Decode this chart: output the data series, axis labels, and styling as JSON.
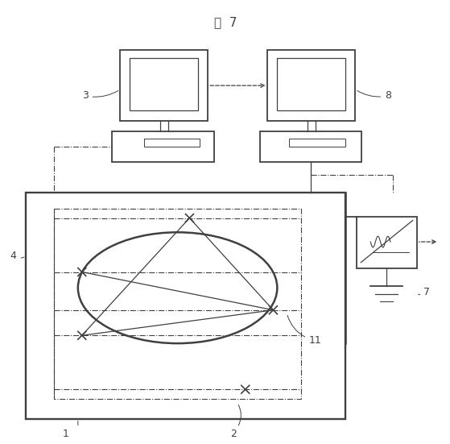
{
  "title": "図  7",
  "title_fontsize": 11,
  "line_color": "#404040",
  "fig_width": 5.59,
  "fig_height": 5.51,
  "dpi": 100
}
